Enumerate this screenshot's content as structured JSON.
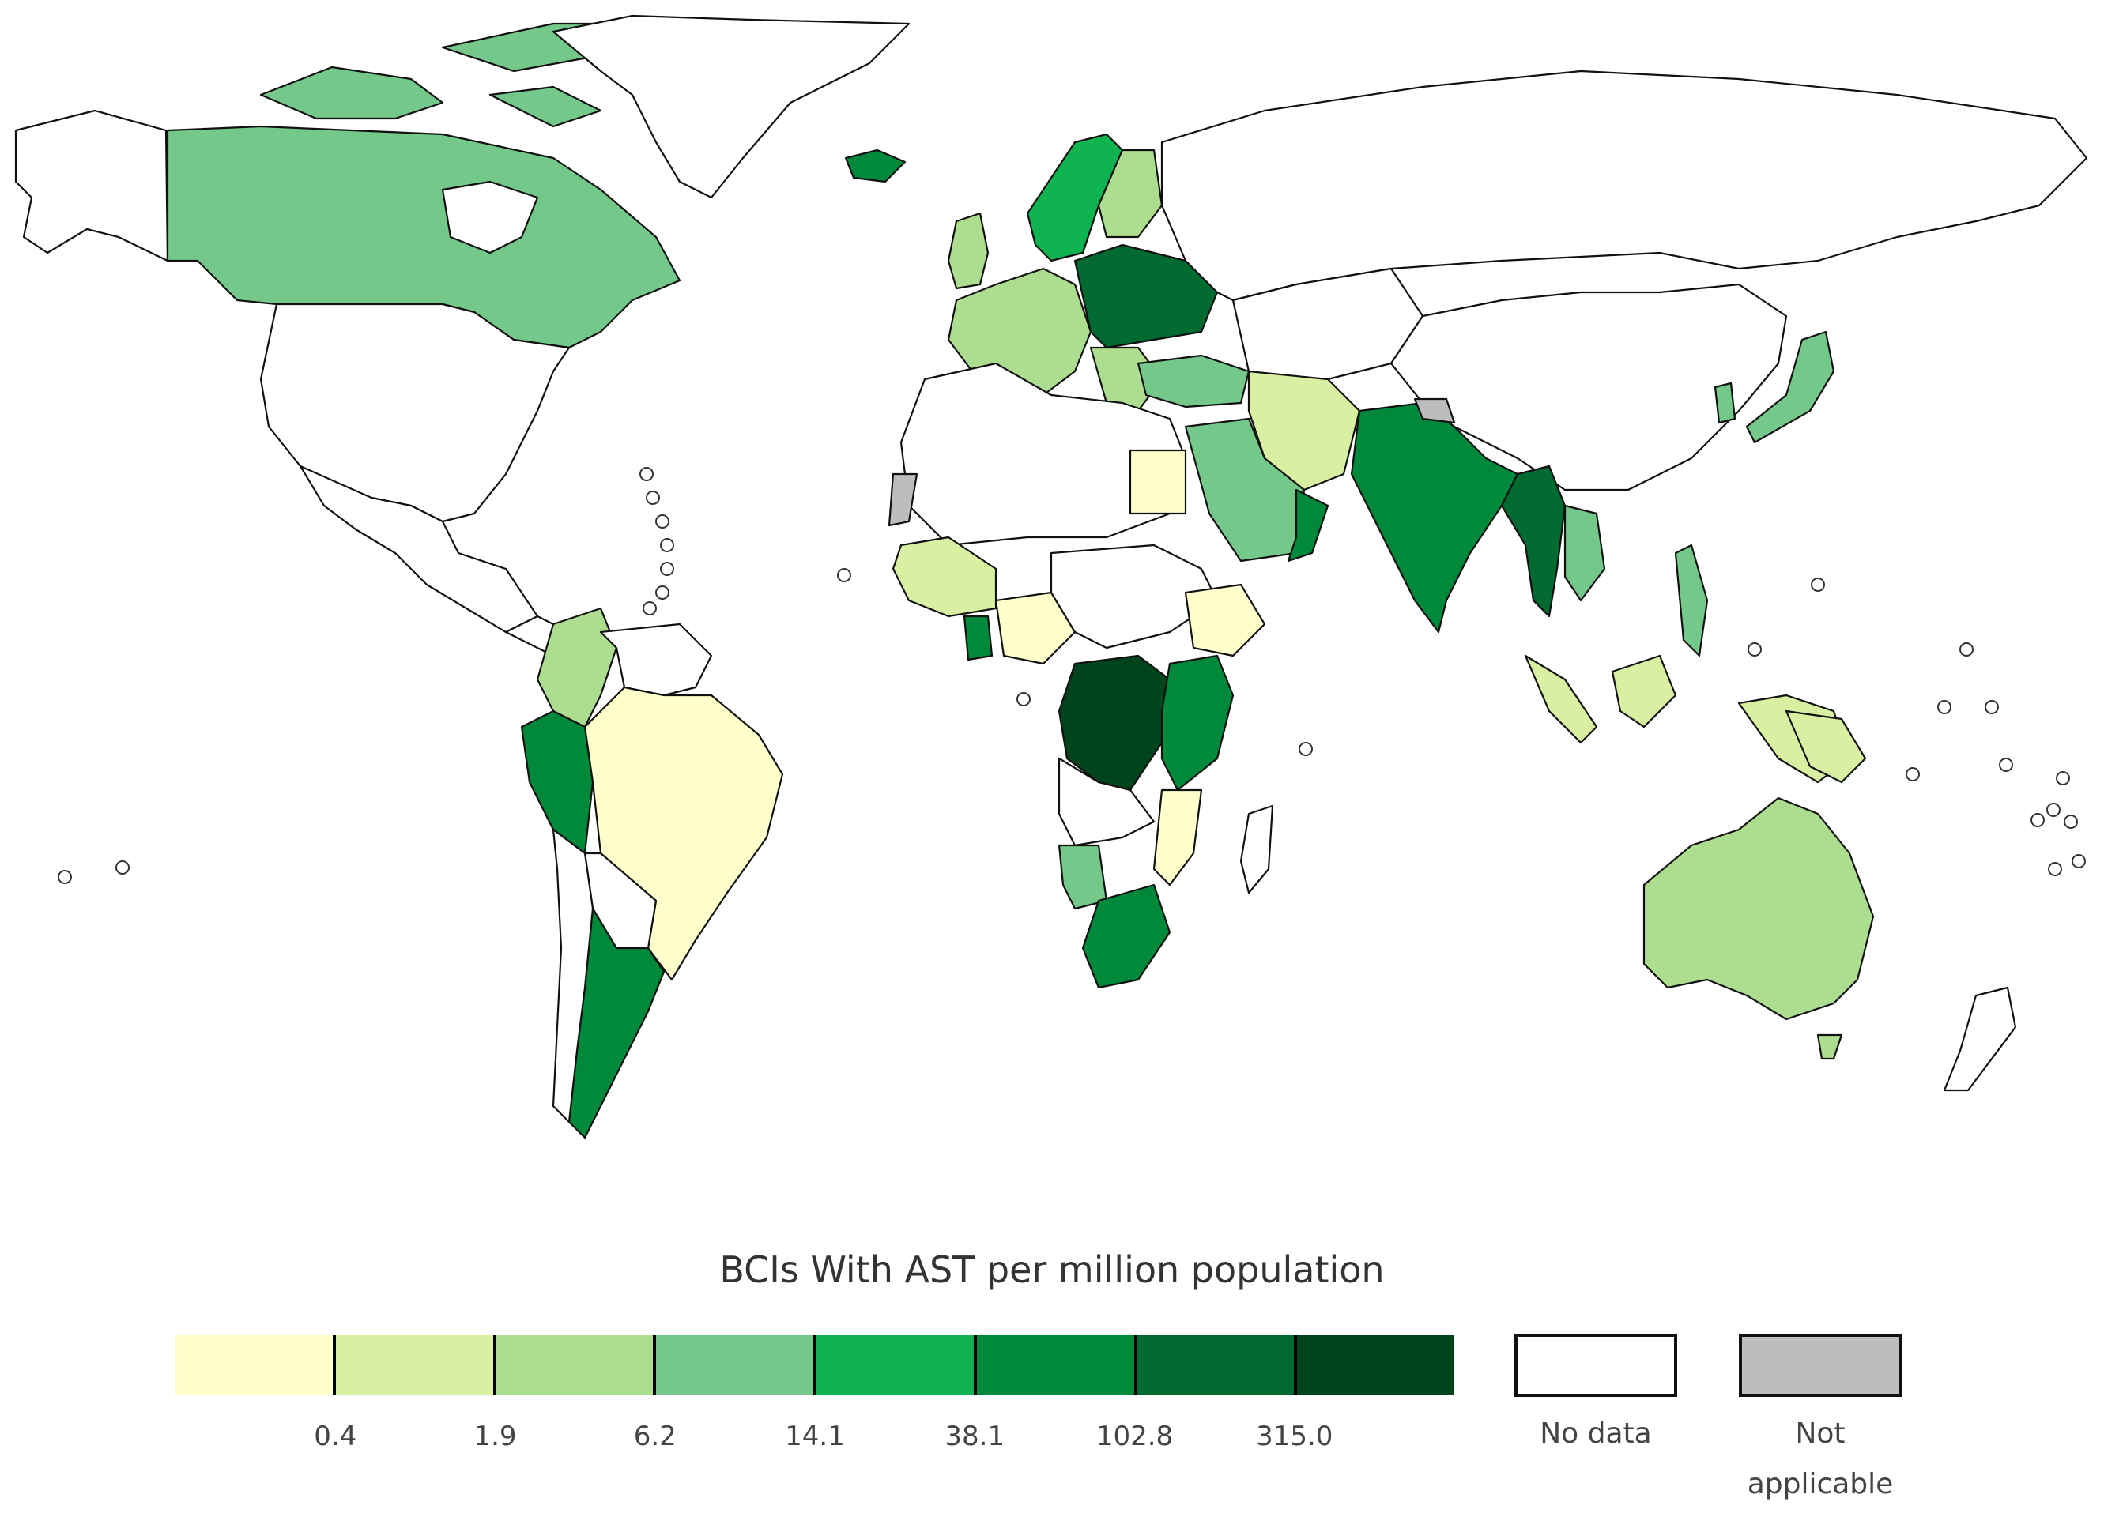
{
  "legend": {
    "title": "BCIs With AST per million population",
    "breaks": [
      "0.4",
      "1.9",
      "6.2",
      "14.1",
      "38.1",
      "102.8",
      "315.0"
    ],
    "bin_colors": [
      "#ffffcc",
      "#d9f0a3",
      "#addd8e",
      "#74c98a",
      "#0fb450",
      "#00893b",
      "#006a30",
      "#00441b"
    ],
    "no_data": {
      "label": "No data",
      "color": "#ffffff"
    },
    "not_applicable": {
      "label_line1": "Not",
      "label_line2": "applicable",
      "color": "#bdbdbd"
    }
  },
  "map": {
    "categories": {
      "canada": "#74c98a",
      "greenland": "#ffffff",
      "usa": "#ffffff",
      "alaska": "#ffffff",
      "mexico": "#ffffff",
      "colombia": "#addd8e",
      "brazil": "#ffffcc",
      "peru": "#00893b",
      "argentina": "#00893b",
      "iceland": "#00893b",
      "scandinavia": "#0fb450",
      "western-europe": "#addd8e",
      "uk": "#addd8e",
      "eastern-europe": "#006a30",
      "russia": "#ffffff",
      "turkey": "#74c98a",
      "iran": "#d9f0a3",
      "saudi-arabia": "#74c98a",
      "egypt": "#ffffcc",
      "india": "#00893b",
      "china": "#ffffff",
      "myanmar": "#006a30",
      "vietnam": "#74c98a",
      "japan": "#74c98a",
      "indonesia": "#d9f0a3",
      "australia": "#addd8e",
      "drc": "#00441b",
      "kenya-tanzania": "#00893b",
      "south-africa": "#00893b",
      "namibia": "#74c98a",
      "west-africa": "#d9f0a3",
      "ghana": "#00893b",
      "nigeria": "#ffffcc",
      "ethiopia": "#ffffcc",
      "mozambique": "#ffffcc",
      "north-africa": "#ffffff",
      "western-sahara": "#bdbdbd",
      "nepal": "#bdbdbd",
      "oman": "#00893b",
      "philippines": "#74c98a",
      "papua": "#d9f0a3",
      "new-zealand": "#ffffff"
    }
  }
}
